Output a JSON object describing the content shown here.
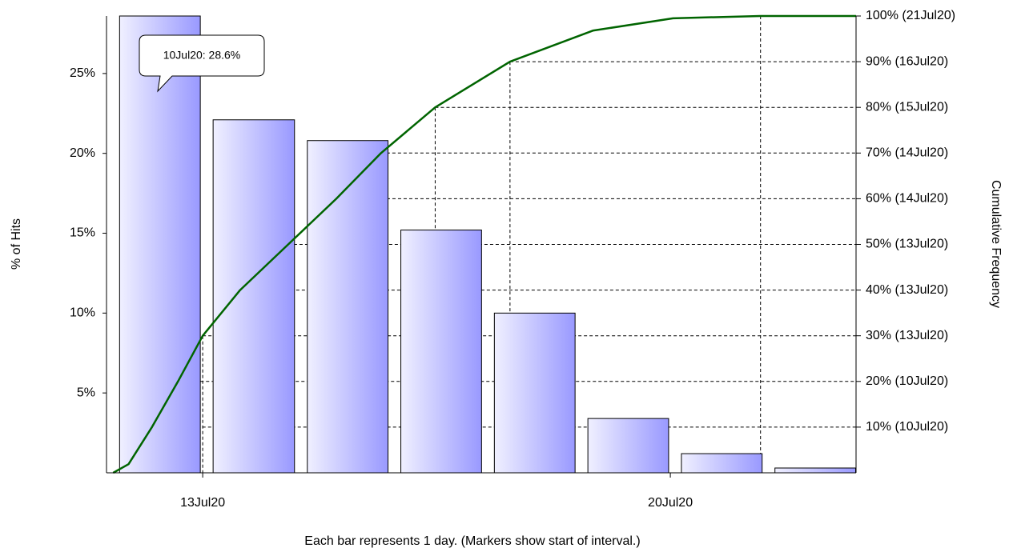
{
  "chart_data": {
    "type": "histogram",
    "x_label": "Each bar represents 1 day. (Markers show start of interval.)",
    "y_label": "% of Hits",
    "y2_label": "Cumulative Frequency",
    "annotation": "10Jul20: 28.6%",
    "bins": [
      11.66,
      13.06,
      14.47,
      15.87,
      17.27,
      18.67,
      20.07,
      21.47,
      22.87
    ],
    "values": [
      28.6,
      22.1,
      20.8,
      15.2,
      10.0,
      3.4,
      1.2,
      0.3
    ],
    "color": "#9999ff",
    "cumulative_x": [
      11.66,
      11.89,
      12.24,
      12.63,
      13.0,
      13.56,
      14.28,
      15.0,
      15.67,
      16.48,
      17.6,
      18.84,
      20.04,
      21.35,
      22.78
    ],
    "cumulative_values": [
      0,
      1.9,
      10,
      20,
      30,
      40,
      50,
      60,
      70,
      80,
      90,
      96.8,
      99.5,
      100,
      100
    ],
    "cumulative_color": "#006400",
    "xlim": [
      11.56,
      22.78
    ],
    "xticks": [
      {
        "value": 13,
        "label": "13Jul20"
      },
      {
        "value": 20,
        "label": "20Jul20"
      }
    ],
    "ylim": [
      0,
      28.6
    ],
    "yticks": [
      {
        "value": 5,
        "label": "5%"
      },
      {
        "value": 10,
        "label": "10%"
      },
      {
        "value": 15,
        "label": "15%"
      },
      {
        "value": 20,
        "label": "20%"
      },
      {
        "value": 25,
        "label": "25%"
      }
    ],
    "y2lim": [
      0,
      100
    ],
    "y2ticks": [
      {
        "value": 10,
        "label": "10% (10Jul20)"
      },
      {
        "value": 20,
        "label": "20% (10Jul20)"
      },
      {
        "value": 30,
        "label": "30% (13Jul20)"
      },
      {
        "value": 40,
        "label": "40% (13Jul20)"
      },
      {
        "value": 50,
        "label": "50% (13Jul20)"
      },
      {
        "value": 60,
        "label": "60% (14Jul20)"
      },
      {
        "value": 70,
        "label": "70% (14Jul20)"
      },
      {
        "value": 80,
        "label": "80% (15Jul20)"
      },
      {
        "value": 90,
        "label": "90% (16Jul20)"
      },
      {
        "value": 100,
        "label": "100% (21Jul20)"
      }
    ]
  }
}
